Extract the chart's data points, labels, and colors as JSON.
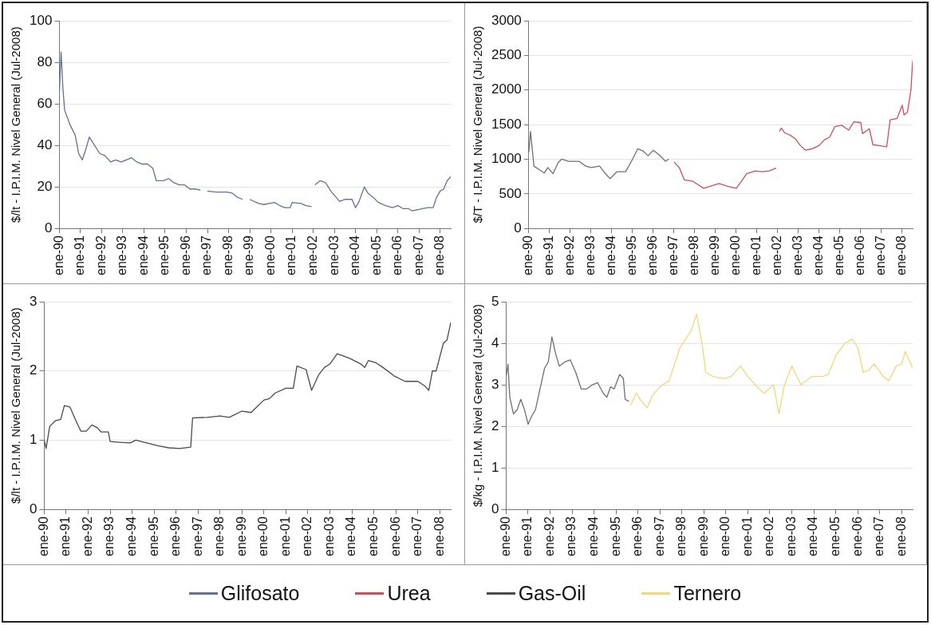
{
  "chart_data": [
    {
      "type": "line",
      "ylabel": "$/lt - I.P.I.M. Nivel General (Jul-2008)",
      "marker": "none",
      "grid": "y",
      "legend": "bottom",
      "xlim": [
        "1990-01",
        "2008-07"
      ],
      "ylim": [
        0,
        100
      ],
      "yticks": [
        0,
        20,
        40,
        60,
        80,
        100
      ],
      "xticks": [
        {
          "value": "1990-01",
          "label": "ene-90"
        },
        {
          "value": "1991-01",
          "label": "ene-91"
        },
        {
          "value": "1992-01",
          "label": "ene-92"
        },
        {
          "value": "1993-01",
          "label": "ene-93"
        },
        {
          "value": "1994-01",
          "label": "ene-94"
        },
        {
          "value": "1995-01",
          "label": "ene-95"
        },
        {
          "value": "1996-01",
          "label": "ene-96"
        },
        {
          "value": "1997-01",
          "label": "ene-97"
        },
        {
          "value": "1998-01",
          "label": "ene-98"
        },
        {
          "value": "1999-01",
          "label": "ene-99"
        },
        {
          "value": "2000-01",
          "label": "ene-00"
        },
        {
          "value": "2001-01",
          "label": "ene-01"
        },
        {
          "value": "2002-01",
          "label": "ene-02"
        },
        {
          "value": "2003-01",
          "label": "ene-03"
        },
        {
          "value": "2004-01",
          "label": "ene-04"
        },
        {
          "value": "2005-01",
          "label": "ene-05"
        },
        {
          "value": "2006-01",
          "label": "ene-06"
        },
        {
          "value": "2007-01",
          "label": "ene-07"
        },
        {
          "value": "2008-01",
          "label": "ene-08"
        }
      ],
      "series": [
        {
          "name": "Glifosato",
          "color": "#66708f",
          "x": [
            "1990-01",
            "1990-02",
            "1990-03",
            "1990-04",
            "1990-07",
            "1990-10",
            "1990-12",
            "1991-02",
            "1991-04",
            "1991-06",
            "1991-09",
            "1991-12",
            "1992-03",
            "1992-06",
            "1992-09",
            "1992-12",
            "1993-03",
            "1993-06",
            "1993-09",
            "1993-12",
            "1994-03",
            "1994-06",
            "1994-08",
            "1994-12",
            "1995-03",
            "1995-06",
            "1995-09",
            "1995-12",
            "1996-03",
            "1996-06",
            "1996-09",
            "1996-11",
            "1997-01",
            "1997-06",
            "1997-12",
            "1998-03",
            "1998-06",
            "1998-09",
            "1998-11",
            "1999-01",
            "1999-06",
            "1999-09",
            "1999-12",
            "2000-03",
            "2000-06",
            "2000-09",
            "2000-12",
            "2001-01",
            "2001-06",
            "2001-09",
            "2001-12",
            "2002-01",
            "2002-02",
            "2002-05",
            "2002-08",
            "2002-11",
            "2003-02",
            "2003-04",
            "2003-07",
            "2003-11",
            "2004-01",
            "2004-03",
            "2004-06",
            "2004-08",
            "2004-11",
            "2005-02",
            "2005-06",
            "2005-10",
            "2006-01",
            "2006-04",
            "2006-07",
            "2006-09",
            "2006-12",
            "2007-03",
            "2007-06",
            "2007-09",
            "2007-11",
            "2008-01",
            "2008-03",
            "2008-05",
            "2008-07"
          ],
          "values": [
            65,
            85,
            68,
            57,
            50,
            45,
            36,
            33,
            38,
            44,
            40,
            36,
            35,
            32,
            33,
            32,
            33,
            34,
            32,
            31,
            31,
            29,
            23,
            23,
            24,
            22,
            21,
            21,
            19,
            19,
            18.5,
            null,
            18,
            17.5,
            17.5,
            17,
            15,
            14,
            null,
            14,
            12,
            11.5,
            12,
            12.5,
            11,
            10,
            10,
            12.5,
            12,
            11,
            10.5,
            null,
            21,
            23,
            22,
            18,
            15,
            13,
            14,
            14,
            10,
            13,
            20,
            17,
            15,
            12.5,
            11,
            10,
            11,
            9.5,
            9.5,
            8.5,
            9,
            9.5,
            10,
            10,
            15,
            18,
            19,
            23,
            25
          ]
        }
      ]
    },
    {
      "type": "line",
      "ylabel": "$/T - I.P.I.M. Nivel General (Jul-2008)",
      "marker": "none",
      "grid": "y",
      "legend": "bottom",
      "xlim": [
        "1990-01",
        "2008-07"
      ],
      "ylim": [
        0,
        3000
      ],
      "yticks": [
        0,
        500,
        1000,
        1500,
        2000,
        2500,
        3000
      ],
      "xticks": [
        {
          "value": "1990-01",
          "label": "ene-90"
        },
        {
          "value": "1991-01",
          "label": "ene-91"
        },
        {
          "value": "1992-01",
          "label": "ene-92"
        },
        {
          "value": "1993-01",
          "label": "ene-93"
        },
        {
          "value": "1994-01",
          "label": "ene-94"
        },
        {
          "value": "1995-01",
          "label": "ene-95"
        },
        {
          "value": "1996-01",
          "label": "ene-96"
        },
        {
          "value": "1997-01",
          "label": "ene-97"
        },
        {
          "value": "1998-01",
          "label": "ene-98"
        },
        {
          "value": "1999-01",
          "label": "ene-99"
        },
        {
          "value": "2000-01",
          "label": "ene-00"
        },
        {
          "value": "2001-01",
          "label": "ene-01"
        },
        {
          "value": "2002-01",
          "label": "ene-02"
        },
        {
          "value": "2003-01",
          "label": "ene-03"
        },
        {
          "value": "2004-01",
          "label": "ene-04"
        },
        {
          "value": "2005-01",
          "label": "ene-05"
        },
        {
          "value": "2006-01",
          "label": "ene-06"
        },
        {
          "value": "2007-01",
          "label": "ene-07"
        },
        {
          "value": "2008-01",
          "label": "ene-08"
        }
      ],
      "series": [
        {
          "color": "#707070",
          "x": [
            "1990-01",
            "1990-02",
            "1990-04",
            "1990-07",
            "1990-10",
            "1990-12",
            "1991-03",
            "1991-06",
            "1991-08",
            "1991-12",
            "1992-06",
            "1992-10",
            "1993-01",
            "1993-06",
            "1993-09",
            "1993-12",
            "1994-04",
            "1994-09",
            "1995-01",
            "1995-04",
            "1995-07",
            "1995-10",
            "1996-01",
            "1996-05",
            "1996-08",
            "1996-10"
          ],
          "values": [
            1100,
            1400,
            900,
            850,
            800,
            880,
            790,
            950,
            1000,
            970,
            970,
            900,
            880,
            900,
            800,
            720,
            820,
            820,
            1000,
            1150,
            1120,
            1050,
            1130,
            1050,
            970,
            1000
          ]
        },
        {
          "name": "Urea",
          "color": "#c8505a",
          "x": [
            "1997-01",
            "1997-04",
            "1997-07",
            "1997-12",
            "1998-03",
            "1998-06",
            "1998-10",
            "1999-03",
            "1999-08",
            "2000-01",
            "2000-04",
            "2000-07",
            "2000-12",
            "2001-04",
            "2001-08",
            "2001-12",
            "2002-01",
            "2002-02",
            "2002-03",
            "2002-05",
            "2002-08",
            "2002-11",
            "2003-02",
            "2003-05",
            "2003-09",
            "2004-01",
            "2004-04",
            "2004-07",
            "2004-10",
            "2005-02",
            "2005-06",
            "2005-09",
            "2006-01",
            "2006-02",
            "2006-06",
            "2006-08",
            "2007-01",
            "2007-04",
            "2007-06",
            "2007-10",
            "2008-01",
            "2008-02",
            "2008-04",
            "2008-06",
            "2008-07"
          ],
          "values": [
            960,
            880,
            700,
            680,
            630,
            580,
            610,
            650,
            610,
            580,
            680,
            790,
            830,
            820,
            830,
            870,
            null,
            1400,
            1450,
            1380,
            1350,
            1300,
            1200,
            1130,
            1150,
            1200,
            1280,
            1320,
            1470,
            1490,
            1420,
            1540,
            1530,
            1370,
            1440,
            1210,
            1190,
            1180,
            1570,
            1590,
            1780,
            1640,
            1680,
            2000,
            2420
          ]
        }
      ]
    },
    {
      "type": "line",
      "ylabel": "$/lt - I.P.I.M. Nivel General (Jul-2008)",
      "marker": "none",
      "grid": "y",
      "legend": "bottom",
      "xlim": [
        "1990-01",
        "2008-07"
      ],
      "ylim": [
        0,
        3
      ],
      "yticks": [
        0,
        1,
        2,
        3
      ],
      "xticks": [
        {
          "value": "1990-01",
          "label": "ene-90"
        },
        {
          "value": "1991-01",
          "label": "ene-91"
        },
        {
          "value": "1992-01",
          "label": "ene-92"
        },
        {
          "value": "1993-01",
          "label": "ene-93"
        },
        {
          "value": "1994-01",
          "label": "ene-94"
        },
        {
          "value": "1995-01",
          "label": "ene-95"
        },
        {
          "value": "1996-01",
          "label": "ene-96"
        },
        {
          "value": "1997-01",
          "label": "ene-97"
        },
        {
          "value": "1998-01",
          "label": "ene-98"
        },
        {
          "value": "1999-01",
          "label": "ene-99"
        },
        {
          "value": "2000-01",
          "label": "ene-00"
        },
        {
          "value": "2001-01",
          "label": "ene-01"
        },
        {
          "value": "2002-01",
          "label": "ene-02"
        },
        {
          "value": "2003-01",
          "label": "ene-03"
        },
        {
          "value": "2004-01",
          "label": "ene-04"
        },
        {
          "value": "2005-01",
          "label": "ene-05"
        },
        {
          "value": "2006-01",
          "label": "ene-06"
        },
        {
          "value": "2007-01",
          "label": "ene-07"
        },
        {
          "value": "2008-01",
          "label": "ene-08"
        }
      ],
      "series": [
        {
          "name": "Gas-Oil",
          "color": "#4a4a4a",
          "x": [
            "1990-01",
            "1990-02",
            "1990-04",
            "1990-07",
            "1990-10",
            "1990-12",
            "1991-03",
            "1991-06",
            "1991-09",
            "1991-12",
            "1992-03",
            "1992-06",
            "1992-08",
            "1992-12",
            "1993-01",
            "1993-06",
            "1993-12",
            "1994-03",
            "1994-09",
            "1995-03",
            "1995-09",
            "1996-03",
            "1996-09",
            "1996-10",
            "1997-06",
            "1998-01",
            "1998-06",
            "1999-01",
            "1999-06",
            "2000-01",
            "2000-04",
            "2000-07",
            "2001-01",
            "2001-05",
            "2001-07",
            "2001-12",
            "2002-03",
            "2002-07",
            "2002-10",
            "2003-01",
            "2003-05",
            "2003-12",
            "2004-06",
            "2004-08",
            "2004-10",
            "2005-02",
            "2005-06",
            "2005-12",
            "2006-06",
            "2007-01",
            "2007-05",
            "2007-07",
            "2007-09",
            "2007-11",
            "2008-01",
            "2008-03",
            "2008-05",
            "2008-07"
          ],
          "values": [
            1.0,
            0.88,
            1.2,
            1.28,
            1.3,
            1.5,
            1.48,
            1.3,
            1.13,
            1.13,
            1.22,
            1.18,
            1.12,
            1.12,
            0.98,
            0.97,
            0.96,
            1.0,
            0.96,
            0.92,
            0.89,
            0.88,
            0.9,
            1.32,
            1.33,
            1.35,
            1.33,
            1.42,
            1.4,
            1.58,
            1.6,
            1.68,
            1.75,
            1.75,
            2.07,
            2.02,
            1.72,
            1.95,
            2.05,
            2.1,
            2.25,
            2.18,
            2.1,
            2.05,
            2.15,
            2.12,
            2.05,
            1.93,
            1.85,
            1.85,
            1.78,
            1.72,
            2.0,
            2.0,
            2.2,
            2.4,
            2.45,
            2.7
          ]
        }
      ]
    },
    {
      "type": "line",
      "ylabel": "$/kg - I.P.I.M. Nivel General (Jul-2008)",
      "marker": "none",
      "grid": "y",
      "legend": "bottom",
      "xlim": [
        "1990-01",
        "2008-07"
      ],
      "ylim": [
        0,
        5
      ],
      "yticks": [
        0,
        1,
        2,
        3,
        4,
        5
      ],
      "xticks": [
        {
          "value": "1990-01",
          "label": "ene-90"
        },
        {
          "value": "1991-01",
          "label": "ene-91"
        },
        {
          "value": "1992-01",
          "label": "ene-92"
        },
        {
          "value": "1993-01",
          "label": "ene-93"
        },
        {
          "value": "1994-01",
          "label": "ene-94"
        },
        {
          "value": "1995-01",
          "label": "ene-95"
        },
        {
          "value": "1996-01",
          "label": "ene-96"
        },
        {
          "value": "1997-01",
          "label": "ene-97"
        },
        {
          "value": "1998-01",
          "label": "ene-98"
        },
        {
          "value": "1999-01",
          "label": "ene-99"
        },
        {
          "value": "2000-01",
          "label": "ene-00"
        },
        {
          "value": "2001-01",
          "label": "ene-01"
        },
        {
          "value": "2002-01",
          "label": "ene-02"
        },
        {
          "value": "2003-01",
          "label": "ene-03"
        },
        {
          "value": "2004-01",
          "label": "ene-04"
        },
        {
          "value": "2005-01",
          "label": "ene-05"
        },
        {
          "value": "2006-01",
          "label": "ene-06"
        },
        {
          "value": "2007-01",
          "label": "ene-07"
        },
        {
          "value": "2008-01",
          "label": "ene-08"
        }
      ],
      "series": [
        {
          "color": "#707070",
          "x": [
            "1990-01",
            "1990-02",
            "1990-03",
            "1990-05",
            "1990-07",
            "1990-09",
            "1990-11",
            "1991-01",
            "1991-03",
            "1991-05",
            "1991-07",
            "1991-10",
            "1991-12",
            "1992-02",
            "1992-04",
            "1992-06",
            "1992-09",
            "1992-12",
            "1993-03",
            "1993-06",
            "1993-09",
            "1993-12",
            "1994-03",
            "1994-06",
            "1994-08",
            "1994-10",
            "1994-12",
            "1995-03",
            "1995-05",
            "1995-06",
            "1995-08"
          ],
          "values": [
            3.2,
            3.5,
            2.7,
            2.3,
            2.4,
            2.65,
            2.4,
            2.05,
            2.25,
            2.4,
            2.8,
            3.4,
            3.55,
            4.15,
            3.75,
            3.45,
            3.55,
            3.6,
            3.3,
            2.9,
            2.9,
            3.0,
            3.05,
            2.8,
            2.7,
            2.95,
            2.9,
            3.25,
            3.15,
            2.65,
            2.6
          ]
        },
        {
          "name": "Ternero",
          "color": "#f2d77a",
          "x": [
            "1995-09",
            "1995-12",
            "1996-03",
            "1996-06",
            "1996-09",
            "1997-01",
            "1997-06",
            "1997-09",
            "1997-12",
            "1998-03",
            "1998-06",
            "1998-09",
            "1998-12",
            "1999-02",
            "1999-06",
            "1999-12",
            "2000-04",
            "2000-09",
            "2001-01",
            "2001-06",
            "2001-10",
            "2002-03",
            "2002-06",
            "2002-09",
            "2003-01",
            "2003-06",
            "2003-12",
            "2004-06",
            "2004-09",
            "2005-01",
            "2005-06",
            "2005-10",
            "2006-01",
            "2006-04",
            "2006-07",
            "2006-10",
            "2007-03",
            "2007-06",
            "2007-10",
            "2008-01",
            "2008-03",
            "2008-07"
          ],
          "values": [
            2.5,
            2.8,
            2.6,
            2.45,
            2.75,
            2.95,
            3.1,
            3.5,
            3.9,
            4.1,
            4.3,
            4.7,
            4.0,
            3.3,
            3.2,
            3.15,
            3.2,
            3.45,
            3.2,
            2.95,
            2.8,
            3.0,
            2.3,
            3.0,
            3.45,
            3.0,
            3.2,
            3.2,
            3.25,
            3.7,
            4.0,
            4.1,
            3.9,
            3.3,
            3.35,
            3.5,
            3.2,
            3.1,
            3.45,
            3.5,
            3.8,
            3.4
          ]
        }
      ]
    }
  ]
}
